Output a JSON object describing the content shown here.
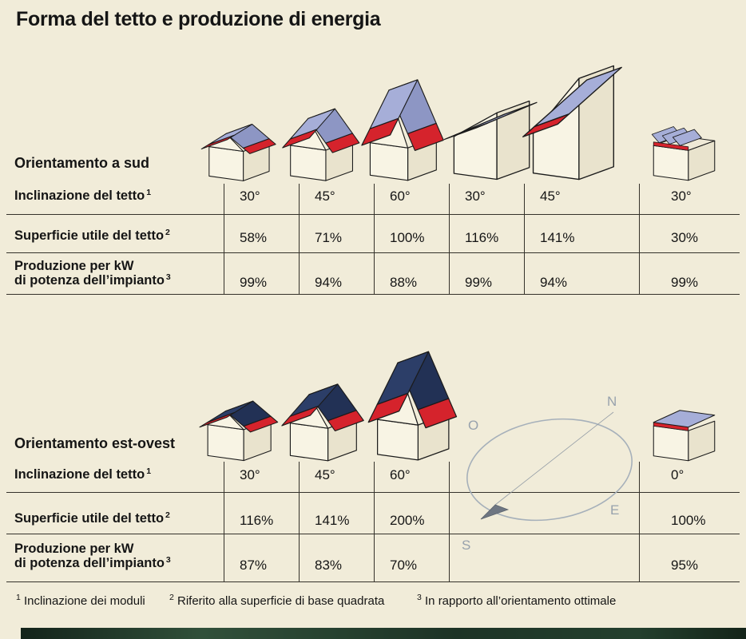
{
  "title": "Forma del tetto e produzione di energia",
  "row_labels": {
    "inclinazione": {
      "text": "Inclinazione del tetto",
      "sup": "1"
    },
    "superficie": {
      "text": "Superficie utile del tetto",
      "sup": "2"
    },
    "produzione_line1": "Produzione per kW",
    "produzione_line2": {
      "text": "di potenza dell’impianto",
      "sup": "3"
    }
  },
  "sections": [
    {
      "name": "Orientamento a sud",
      "houses": [
        {
          "type": "gable",
          "angle": 30
        },
        {
          "type": "gable",
          "angle": 45
        },
        {
          "type": "gable",
          "angle": 60
        },
        {
          "type": "shed",
          "angle": 30
        },
        {
          "type": "shed",
          "angle": 45
        },
        {
          "type": "flat-racks",
          "angle": 30
        }
      ],
      "values": {
        "inclinazione": [
          "30°",
          "45°",
          "60°",
          "30°",
          "45°",
          "30°"
        ],
        "superficie": [
          "58%",
          "71%",
          "100%",
          "116%",
          "141%",
          "30%"
        ],
        "produzione": [
          "99%",
          "94%",
          "88%",
          "99%",
          "94%",
          "99%"
        ]
      }
    },
    {
      "name": "Orientamento est-ovest",
      "houses": [
        {
          "type": "gable-ew",
          "angle": 30
        },
        {
          "type": "gable-ew",
          "angle": 45
        },
        {
          "type": "gable-ew",
          "angle": 60
        },
        {
          "type": "flat-panel",
          "angle": 0
        }
      ],
      "values": {
        "inclinazione": [
          "30°",
          "45°",
          "60°",
          "",
          "",
          "0°"
        ],
        "superficie": [
          "116%",
          "141%",
          "200%",
          "",
          "",
          "100%"
        ],
        "produzione": [
          "87%",
          "83%",
          "70%",
          "",
          "",
          "95%"
        ]
      }
    }
  ],
  "compass": {
    "n": "N",
    "o": "O",
    "e": "E",
    "s": "S"
  },
  "footnotes": [
    {
      "sup": "1",
      "text": "Inclinazione dei moduli"
    },
    {
      "sup": "2",
      "text": "Riferito alla superficie di base quadrata"
    },
    {
      "sup": "3",
      "text": "In rapporto all’orientamento ottimale"
    }
  ],
  "colors": {
    "panel_light": "#a6aed8",
    "panel_light_shade": "#8d96c4",
    "panel_dark": "#2c3e68",
    "panel_dark_shade": "#223155",
    "roof_red": "#d5232c",
    "paper": "#f1ecd9"
  }
}
